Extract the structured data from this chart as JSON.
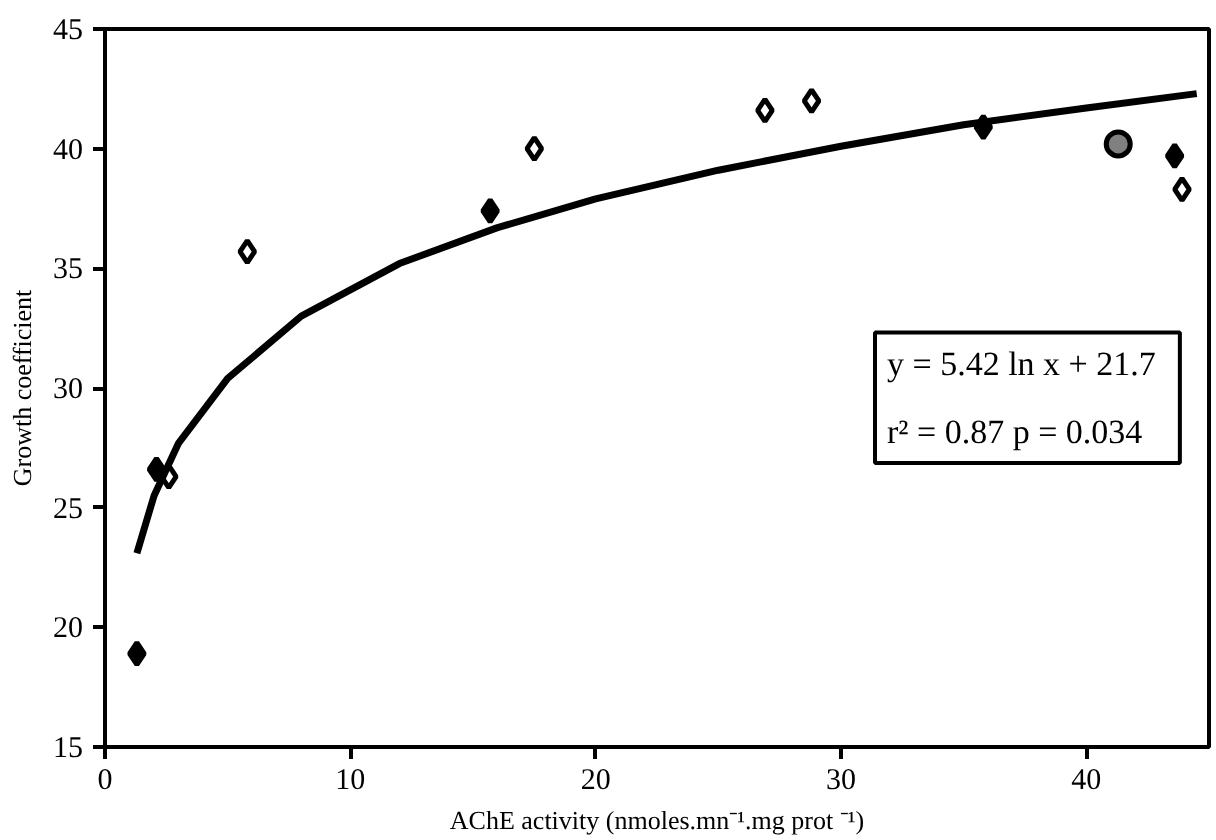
{
  "chart_data": {
    "type": "scatter",
    "xlabel": "AChE activity (nmoles.mn⁻¹.mg prot ⁻¹)",
    "ylabel": "Growth coefficient",
    "xlim": [
      0,
      45
    ],
    "xticks": [
      0,
      10,
      20,
      30,
      40
    ],
    "ylim": [
      15,
      45
    ],
    "yticks": [
      15,
      20,
      25,
      30,
      35,
      40,
      45
    ],
    "grid": false,
    "series": [
      {
        "marker": "diamond",
        "color": "#000000",
        "x": [
          1.3,
          2.1,
          15.7,
          35.8,
          43.6
        ],
        "values": [
          18.9,
          26.6,
          37.4,
          40.9,
          39.7
        ]
      },
      {
        "marker": "diamond",
        "color": "#ffffff",
        "x": [
          2.6,
          5.8,
          17.5,
          26.9,
          28.8,
          43.9
        ],
        "values": [
          26.3,
          35.7,
          40.0,
          41.6,
          42.0,
          38.3
        ]
      },
      {
        "marker": "circle",
        "color": "#808080",
        "x": [
          41.3
        ],
        "values": [
          40.2
        ]
      },
      {
        "type": "line",
        "marker": "none",
        "color": "#000000",
        "x": [
          1.3,
          2,
          3,
          5,
          8,
          12,
          16,
          20,
          25,
          30,
          35,
          40,
          44.5
        ],
        "values": [
          23.1,
          25.5,
          27.7,
          30.4,
          33.0,
          35.2,
          36.7,
          37.9,
          39.1,
          40.1,
          41.0,
          41.7,
          42.3
        ]
      }
    ],
    "annotations": [
      "y = 5.42 ln x + 21.7",
      "r² = 0.87    p = 0.034"
    ]
  }
}
